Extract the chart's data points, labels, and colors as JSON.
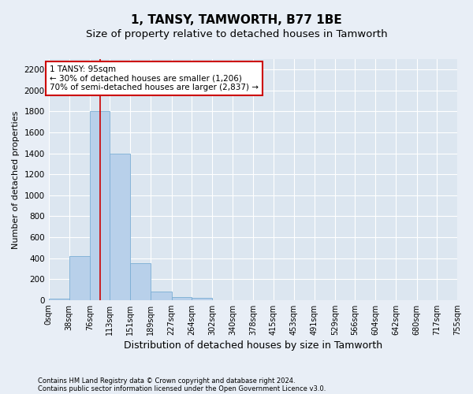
{
  "title": "1, TANSY, TAMWORTH, B77 1BE",
  "subtitle": "Size of property relative to detached houses in Tamworth",
  "xlabel": "Distribution of detached houses by size in Tamworth",
  "ylabel": "Number of detached properties",
  "bar_color": "#b8d0ea",
  "bar_edge_color": "#7aadd4",
  "background_color": "#dce6f0",
  "fig_background_color": "#e8eef6",
  "bin_edges": [
    0,
    38,
    76,
    113,
    151,
    189,
    227,
    264,
    302,
    340,
    378,
    415,
    453,
    491,
    529,
    566,
    604,
    642,
    680,
    717,
    755
  ],
  "bar_heights": [
    15,
    420,
    1800,
    1400,
    350,
    80,
    30,
    20,
    0,
    0,
    0,
    0,
    0,
    0,
    0,
    0,
    0,
    0,
    0,
    0
  ],
  "ylim": [
    0,
    2300
  ],
  "yticks": [
    0,
    200,
    400,
    600,
    800,
    1000,
    1200,
    1400,
    1600,
    1800,
    2000,
    2200
  ],
  "property_size": 95,
  "red_line_color": "#cc0000",
  "annotation_line1": "1 TANSY: 95sqm",
  "annotation_line2": "← 30% of detached houses are smaller (1,206)",
  "annotation_line3": "70% of semi-detached houses are larger (2,837) →",
  "annotation_border_color": "#cc0000",
  "footer_line1": "Contains HM Land Registry data © Crown copyright and database right 2024.",
  "footer_line2": "Contains public sector information licensed under the Open Government Licence v3.0.",
  "grid_color": "#ffffff",
  "title_fontsize": 11,
  "subtitle_fontsize": 9.5,
  "tick_label_fontsize": 7,
  "ylabel_fontsize": 8,
  "xlabel_fontsize": 9,
  "annotation_fontsize": 7.5,
  "footer_fontsize": 6
}
